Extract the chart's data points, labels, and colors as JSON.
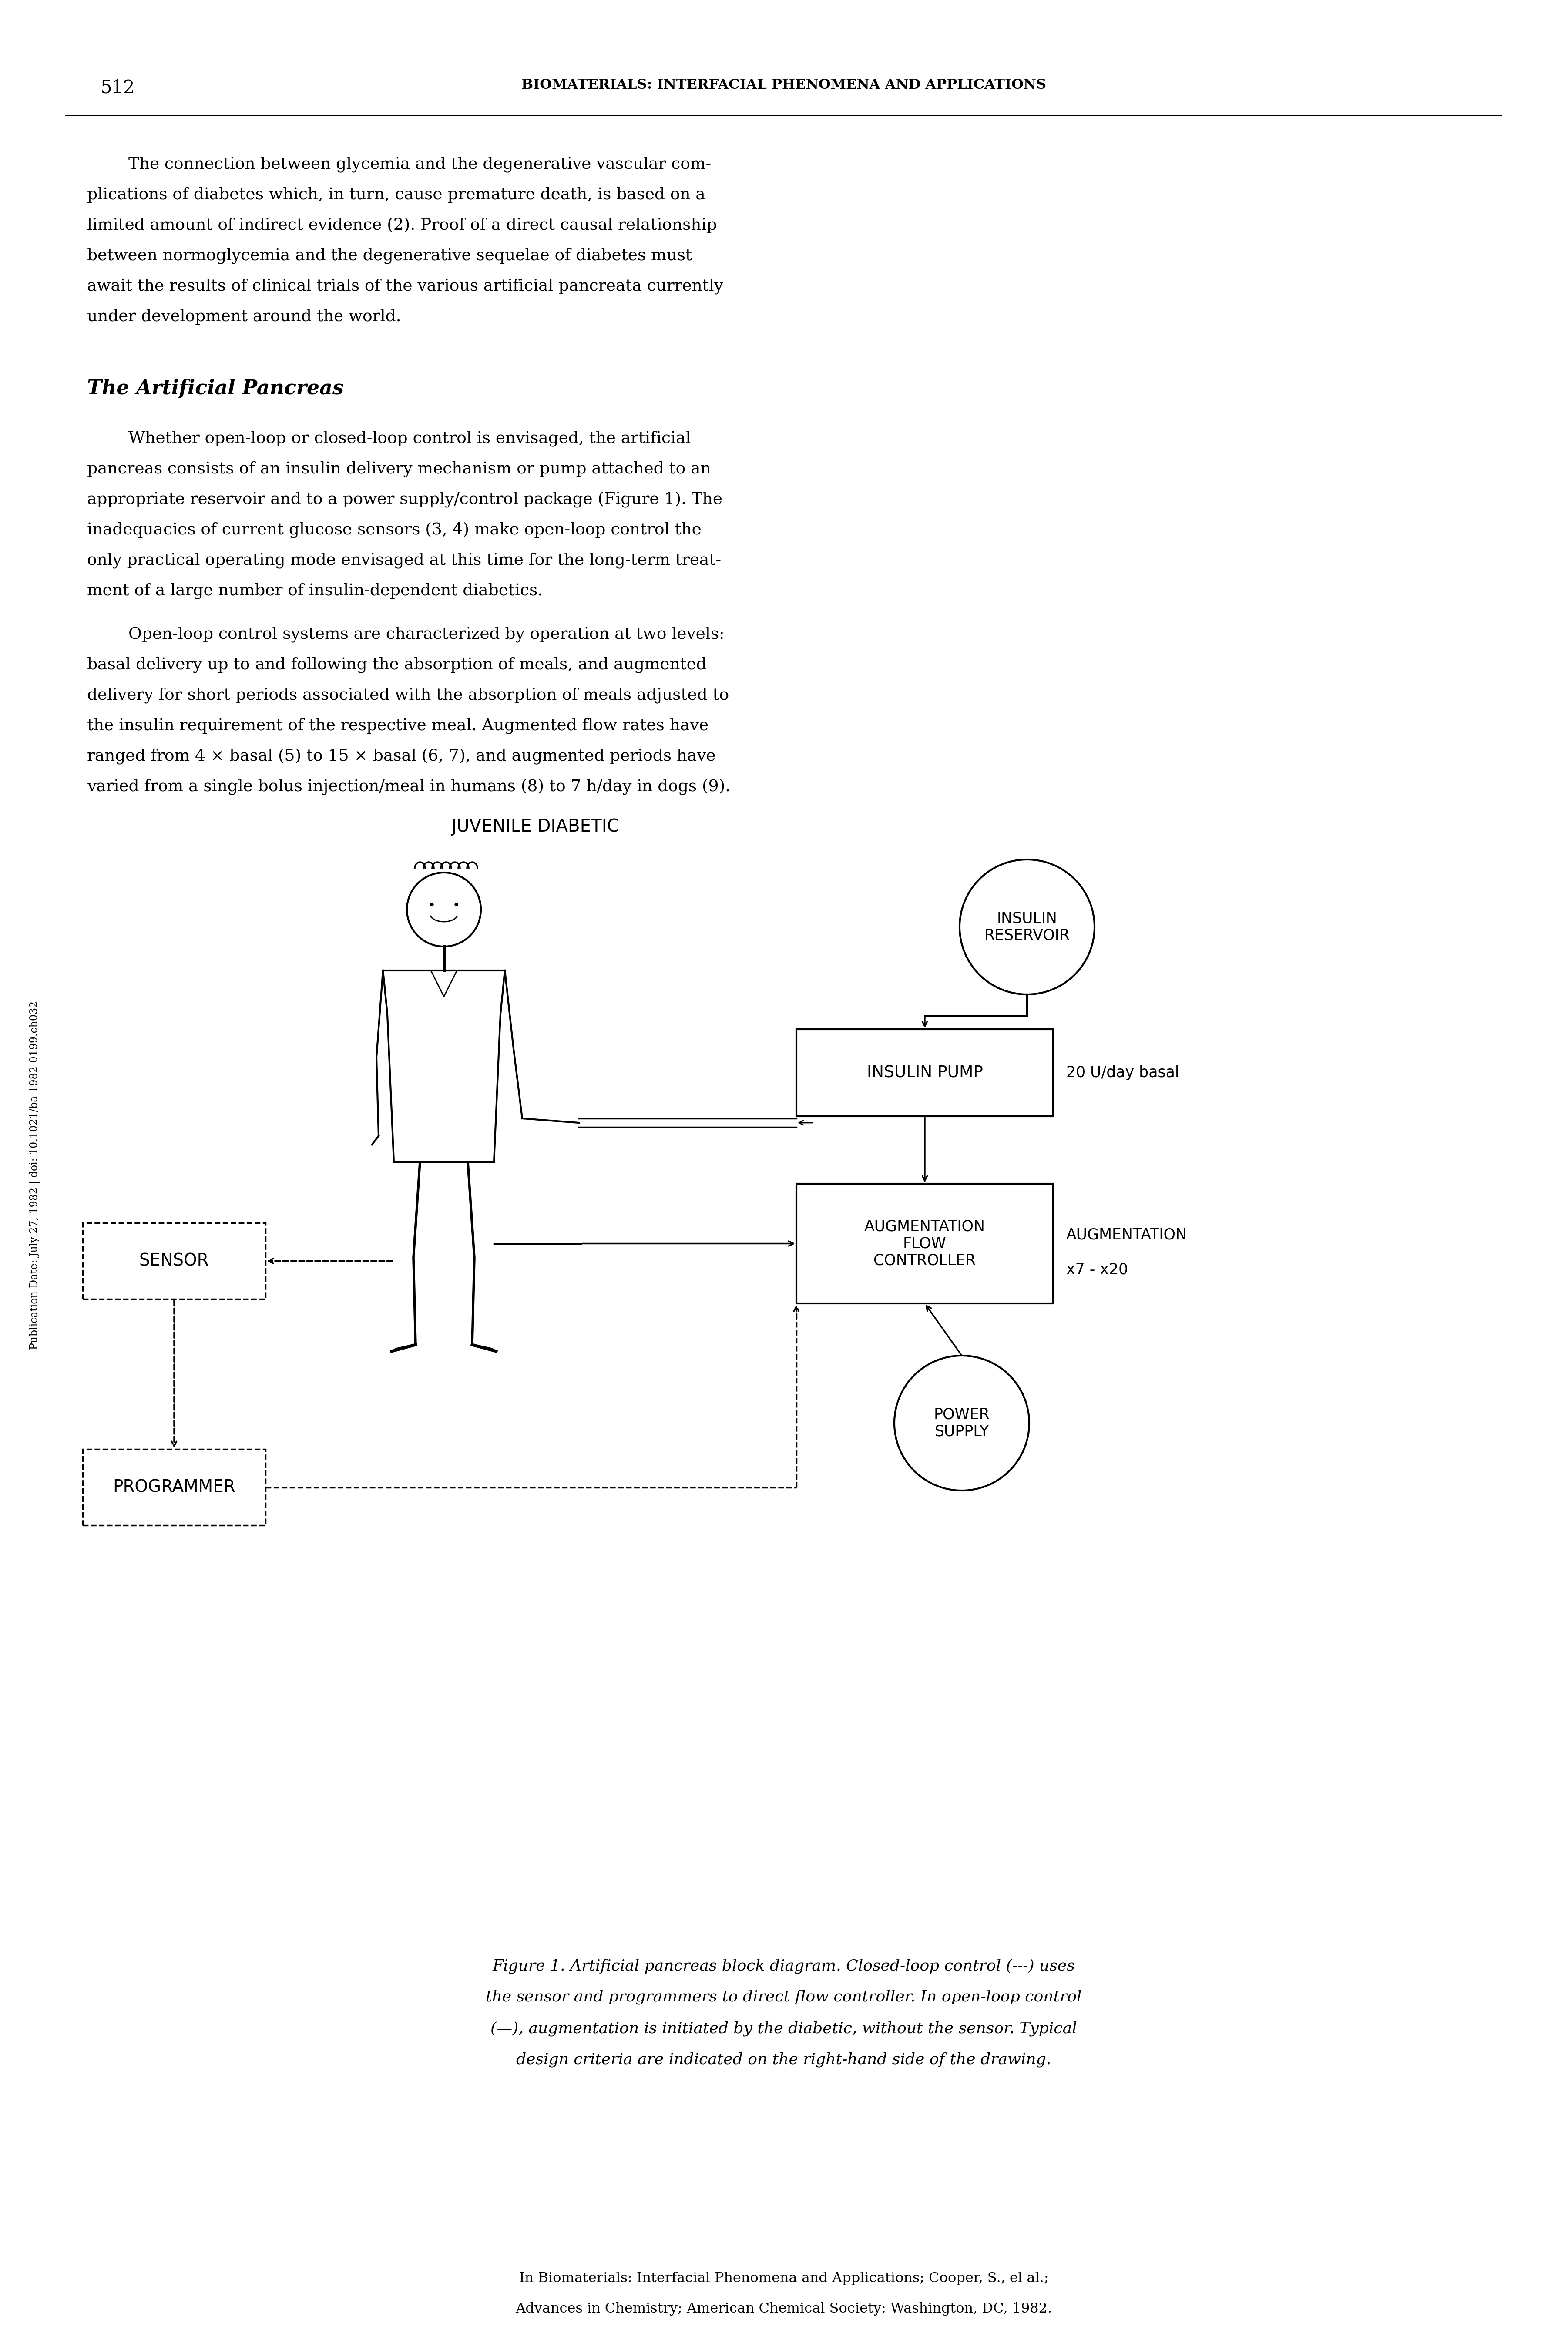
{
  "page_number": "512",
  "header_title": "BIOMATERIALS: INTERFACIAL PHENOMENA AND APPLICATIONS",
  "text1_lines": [
    "        The connection between glycemia and the degenerative vascular com-",
    "plications of diabetes which, in turn, cause premature death, is based on a",
    "limited amount of indirect evidence (2). Proof of a direct causal relationship",
    "between normoglycemia and the degenerative sequelae of diabetes must",
    "await the results of clinical trials of the various artificial pancreata currently",
    "under development around the world."
  ],
  "section_title": "The Artificial Pancreas",
  "text2_lines": [
    "        Whether open-loop or closed-loop control is envisaged, the artificial",
    "pancreas consists of an insulin delivery mechanism or pump attached to an",
    "appropriate reservoir and to a power supply/control package (Figure 1). The",
    "inadequacies of current glucose sensors (3, 4) make open-loop control the",
    "only practical operating mode envisaged at this time for the long-term treat-",
    "ment of a large number of insulin-dependent diabetics."
  ],
  "text3_lines": [
    "        Open-loop control systems are characterized by operation at two levels:",
    "basal delivery up to and following the absorption of meals, and augmented",
    "delivery for short periods associated with the absorption of meals adjusted to",
    "the insulin requirement of the respective meal. Augmented flow rates have",
    "ranged from 4 × basal (5) to 15 × basal (6, 7), and augmented periods have",
    "varied from a single bolus injection/meal in humans (8) to 7 h/day in dogs (9)."
  ],
  "diagram_label_top": "JUVENILE DIABETIC",
  "diagram_insulin_reservoir": "INSULIN\nRESERVOIR",
  "diagram_insulin_pump": "INSULIN PUMP",
  "diagram_augmentation": "AUGMENTATION\nFLOW\nCONTROLLER",
  "diagram_power_supply": "POWER\nSUPPLY",
  "diagram_sensor": "SENSOR",
  "diagram_programmer": "PROGRAMMER",
  "diagram_label_basal": "20 U/day basal",
  "diagram_label_aug": "AUGMENTATION",
  "diagram_label_aug2": "x7 - x20",
  "caption_lines": [
    "Figure 1. Artificial pancreas block diagram. Closed-loop control (---) uses",
    "the sensor and programmers to direct flow controller. In open-loop control",
    "(—), augmentation is initiated by the diabetic, without the sensor. Typical",
    "design criteria are indicated on the right-hand side of the drawing."
  ],
  "footer_line1": "In Biomaterials: Interfacial Phenomena and Applications; Cooper, S., el al.;",
  "footer_line2": "Advances in Chemistry; American Chemical Society: Washington, DC, 1982.",
  "sidebar_text": "Publication Date: July 27, 1982 | doi: 10.1021/ba-1982-0199.ch032",
  "bg_color": "#ffffff",
  "text_color": "#000000"
}
